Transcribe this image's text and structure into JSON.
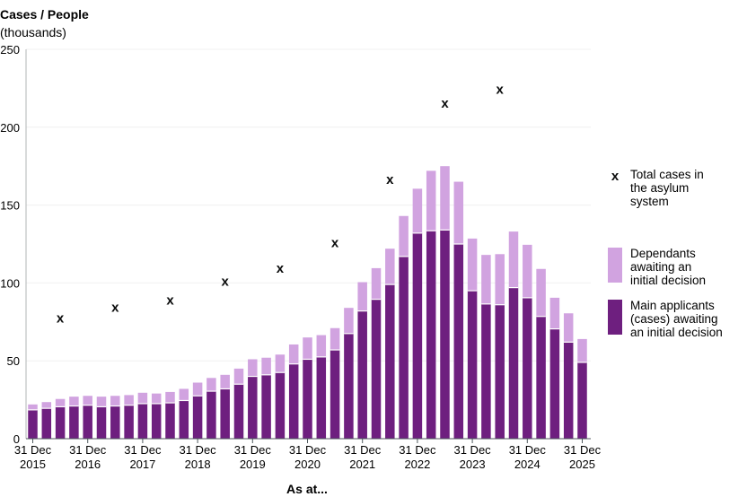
{
  "colors": {
    "main": "#6e1f7f",
    "dependants": "#d1a3e0",
    "cross": "#0b0c0c",
    "axis": "#b1b4b6",
    "grid": "#f0f0f0"
  },
  "chart_data": {
    "type": "bar",
    "stacked": true,
    "ylabel_title": "Cases / People",
    "ylabel_unit": "(thousands)",
    "xlabel": "As at...",
    "ylim": [
      0,
      250
    ],
    "yticks": [
      0,
      50,
      100,
      150,
      200,
      250
    ],
    "grid": "horizontal",
    "legend_placement": "right",
    "x_ticks": [
      {
        "line1": "31 Dec",
        "line2": "2015",
        "quarter_index": 0
      },
      {
        "line1": "31 Dec",
        "line2": "2016",
        "quarter_index": 4
      },
      {
        "line1": "31 Dec",
        "line2": "2017",
        "quarter_index": 8
      },
      {
        "line1": "31 Dec",
        "line2": "2018",
        "quarter_index": 12
      },
      {
        "line1": "31 Dec",
        "line2": "2019",
        "quarter_index": 16
      },
      {
        "line1": "31 Dec",
        "line2": "2020",
        "quarter_index": 20
      },
      {
        "line1": "31 Dec",
        "line2": "2021",
        "quarter_index": 24
      },
      {
        "line1": "31 Dec",
        "line2": "2022",
        "quarter_index": 28
      },
      {
        "line1": "31 Dec",
        "line2": "2023",
        "quarter_index": 32
      },
      {
        "line1": "31 Dec",
        "line2": "2024",
        "quarter_index": 36
      },
      {
        "line1": "31 Dec",
        "line2": "2025",
        "quarter_index": 40
      }
    ],
    "series": [
      {
        "name": "Main applicants (cases) awaiting an initial decision",
        "values": [
          18.5,
          19.5,
          20.5,
          21,
          21.5,
          20.5,
          21,
          21.5,
          22.5,
          22.5,
          23,
          24.5,
          27.5,
          30.5,
          32,
          35,
          40,
          41,
          42.5,
          48,
          51,
          52.5,
          57,
          67.5,
          82,
          89.5,
          99,
          117,
          132,
          133.5,
          134,
          125,
          95,
          86.5,
          86,
          97,
          90.5,
          78.5,
          70.5,
          62,
          49
        ]
      },
      {
        "name": "Dependants awaiting an initial decision",
        "values": [
          3.5,
          4,
          5,
          6,
          6,
          6.5,
          6.5,
          6.5,
          7,
          6.5,
          7,
          7.5,
          8.5,
          8.5,
          9,
          10,
          11,
          11,
          11.5,
          12.5,
          14,
          14,
          14,
          16.5,
          18.5,
          20,
          23,
          26,
          28.5,
          38.5,
          41,
          40,
          33.5,
          31.5,
          32.5,
          36,
          34,
          30.5,
          20,
          18.5,
          15
        ]
      }
    ],
    "total_cases": {
      "name": "Total cases in the asylum system",
      "marker": "x",
      "points": [
        {
          "quarter_index": 2,
          "value": 77.5
        },
        {
          "quarter_index": 6,
          "value": 84.5
        },
        {
          "quarter_index": 10,
          "value": 89
        },
        {
          "quarter_index": 14,
          "value": 101
        },
        {
          "quarter_index": 18,
          "value": 109.5
        },
        {
          "quarter_index": 22,
          "value": 126
        },
        {
          "quarter_index": 26,
          "value": 166.5
        },
        {
          "quarter_index": 30,
          "value": 215.5
        },
        {
          "quarter_index": 34,
          "value": 224.5
        }
      ]
    }
  },
  "legend": [
    {
      "key": "cross",
      "marker": "x",
      "lines": [
        "Total cases in",
        "the asylum",
        "system"
      ]
    },
    {
      "key": "dependants",
      "lines": [
        "Dependants",
        "awaiting an",
        "initial decision"
      ]
    },
    {
      "key": "main",
      "lines": [
        "Main applicants",
        "(cases) awaiting",
        "an initial decision"
      ]
    }
  ]
}
